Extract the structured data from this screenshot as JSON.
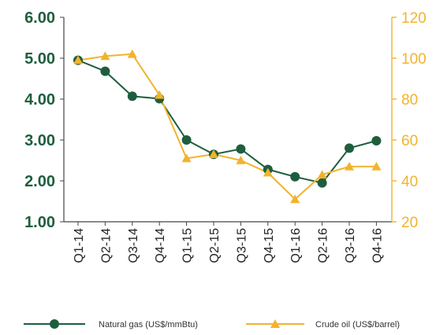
{
  "chart_data": {
    "type": "line",
    "categories": [
      "Q1-14",
      "Q2-14",
      "Q3-14",
      "Q4-14",
      "Q1-15",
      "Q2-15",
      "Q3-15",
      "Q4-15",
      "Q1-16",
      "Q2-16",
      "Q3-16",
      "Q4-16"
    ],
    "series": [
      {
        "name": "Natural gas (US$/mmBtu)",
        "axis": "left",
        "color": "#1e5e3e",
        "marker": "circle",
        "values": [
          4.95,
          4.68,
          4.07,
          4.01,
          3.0,
          2.65,
          2.78,
          2.28,
          2.1,
          1.95,
          2.8,
          2.98
        ]
      },
      {
        "name": "Crude oil (US$/barrel)",
        "axis": "right",
        "color": "#f2b32c",
        "marker": "triangle",
        "values": [
          99,
          101,
          102,
          82,
          51,
          53,
          50,
          44,
          31,
          43,
          47,
          47
        ]
      }
    ],
    "y_left": {
      "lim": [
        1.0,
        6.0
      ],
      "ticks": [
        "1.00",
        "2.00",
        "3.00",
        "4.00",
        "5.00",
        "6.00"
      ],
      "color": "#1e5e3e"
    },
    "y_right": {
      "lim": [
        20,
        120
      ],
      "ticks": [
        "20",
        "40",
        "60",
        "80",
        "100",
        "120"
      ],
      "color": "#f2b32c"
    },
    "grid": false,
    "legend_position": "bottom"
  }
}
